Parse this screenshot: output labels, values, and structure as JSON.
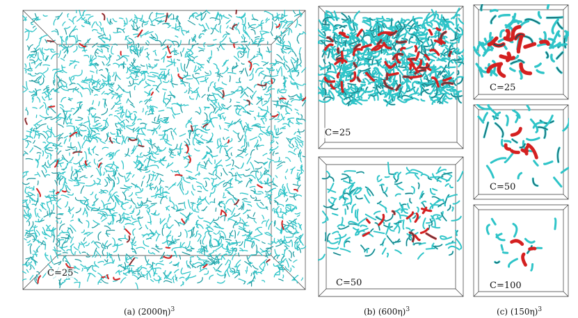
{
  "figure": {
    "panels": [
      {
        "id": "a",
        "caption": "(a)  (2000η)",
        "exponent": "3",
        "labels": [
          "C=25"
        ]
      },
      {
        "id": "b",
        "caption": "(b)  (600η)",
        "exponent": "3",
        "labels": [
          "C=25",
          "C=50"
        ]
      },
      {
        "id": "c",
        "caption": "(c)  (150η)",
        "exponent": "3",
        "labels": [
          "C=25",
          "C=50",
          "C=100"
        ]
      }
    ],
    "colors": {
      "structure_low": "#2ec4c8",
      "structure_high": "#d42020",
      "frame": "#333333"
    }
  }
}
